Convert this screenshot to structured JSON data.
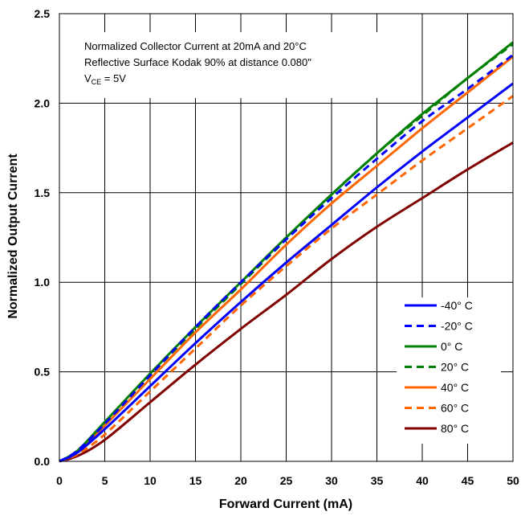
{
  "chart_data": {
    "type": "line",
    "xlabel": "Forward Current (mA)",
    "ylabel": "Normalized Output Current",
    "xlim": [
      0,
      50
    ],
    "ylim": [
      0,
      2.5
    ],
    "xticks": [
      "0",
      "5",
      "10",
      "15",
      "20",
      "25",
      "30",
      "35",
      "40",
      "45",
      "50"
    ],
    "yticks": [
      "0.0",
      "0.5",
      "1.0",
      "1.5",
      "2.0",
      "2.5"
    ],
    "grid": true,
    "legend_position": "bottom-right",
    "annotations": {
      "line1": "Normalized Collector Current at 20mA and 20°C",
      "line2": "Reflective Surface Kodak 90% at distance 0.080\"",
      "line3_main": "V",
      "line3_sub": "CE",
      "line3_rest": " = 5V"
    },
    "x": [
      0,
      2,
      5,
      10,
      15,
      20,
      25,
      30,
      35,
      40,
      45,
      50
    ],
    "series": [
      {
        "name": "-40° C",
        "color": "#0000ff",
        "dash": "solid",
        "values": [
          0,
          0.05,
          0.18,
          0.42,
          0.66,
          0.89,
          1.11,
          1.32,
          1.53,
          1.73,
          1.92,
          2.11
        ]
      },
      {
        "name": "-20° C",
        "color": "#0000ff",
        "dash": "dashed",
        "values": [
          0,
          0.06,
          0.21,
          0.48,
          0.75,
          1.0,
          1.24,
          1.47,
          1.69,
          1.9,
          2.08,
          2.27
        ]
      },
      {
        "name": "0° C",
        "color": "#008000",
        "dash": "solid",
        "values": [
          0,
          0.06,
          0.22,
          0.49,
          0.75,
          1.0,
          1.25,
          1.49,
          1.72,
          1.94,
          2.14,
          2.34
        ]
      },
      {
        "name": "20° C",
        "color": "#008000",
        "dash": "dashed",
        "values": [
          0,
          0.06,
          0.21,
          0.48,
          0.74,
          0.99,
          1.24,
          1.49,
          1.72,
          1.93,
          2.14,
          2.33
        ]
      },
      {
        "name": "40° C",
        "color": "#ff6600",
        "dash": "solid",
        "values": [
          0,
          0.05,
          0.2,
          0.46,
          0.72,
          0.96,
          1.21,
          1.44,
          1.65,
          1.86,
          2.06,
          2.26
        ]
      },
      {
        "name": "60° C",
        "color": "#ff6600",
        "dash": "dashed",
        "values": [
          0,
          0.04,
          0.15,
          0.39,
          0.63,
          0.87,
          1.09,
          1.3,
          1.49,
          1.68,
          1.86,
          2.04
        ]
      },
      {
        "name": "80° C",
        "color": "#800000",
        "dash": "solid",
        "values": [
          0,
          0.03,
          0.12,
          0.33,
          0.54,
          0.74,
          0.93,
          1.13,
          1.31,
          1.47,
          1.63,
          1.78
        ]
      }
    ]
  }
}
